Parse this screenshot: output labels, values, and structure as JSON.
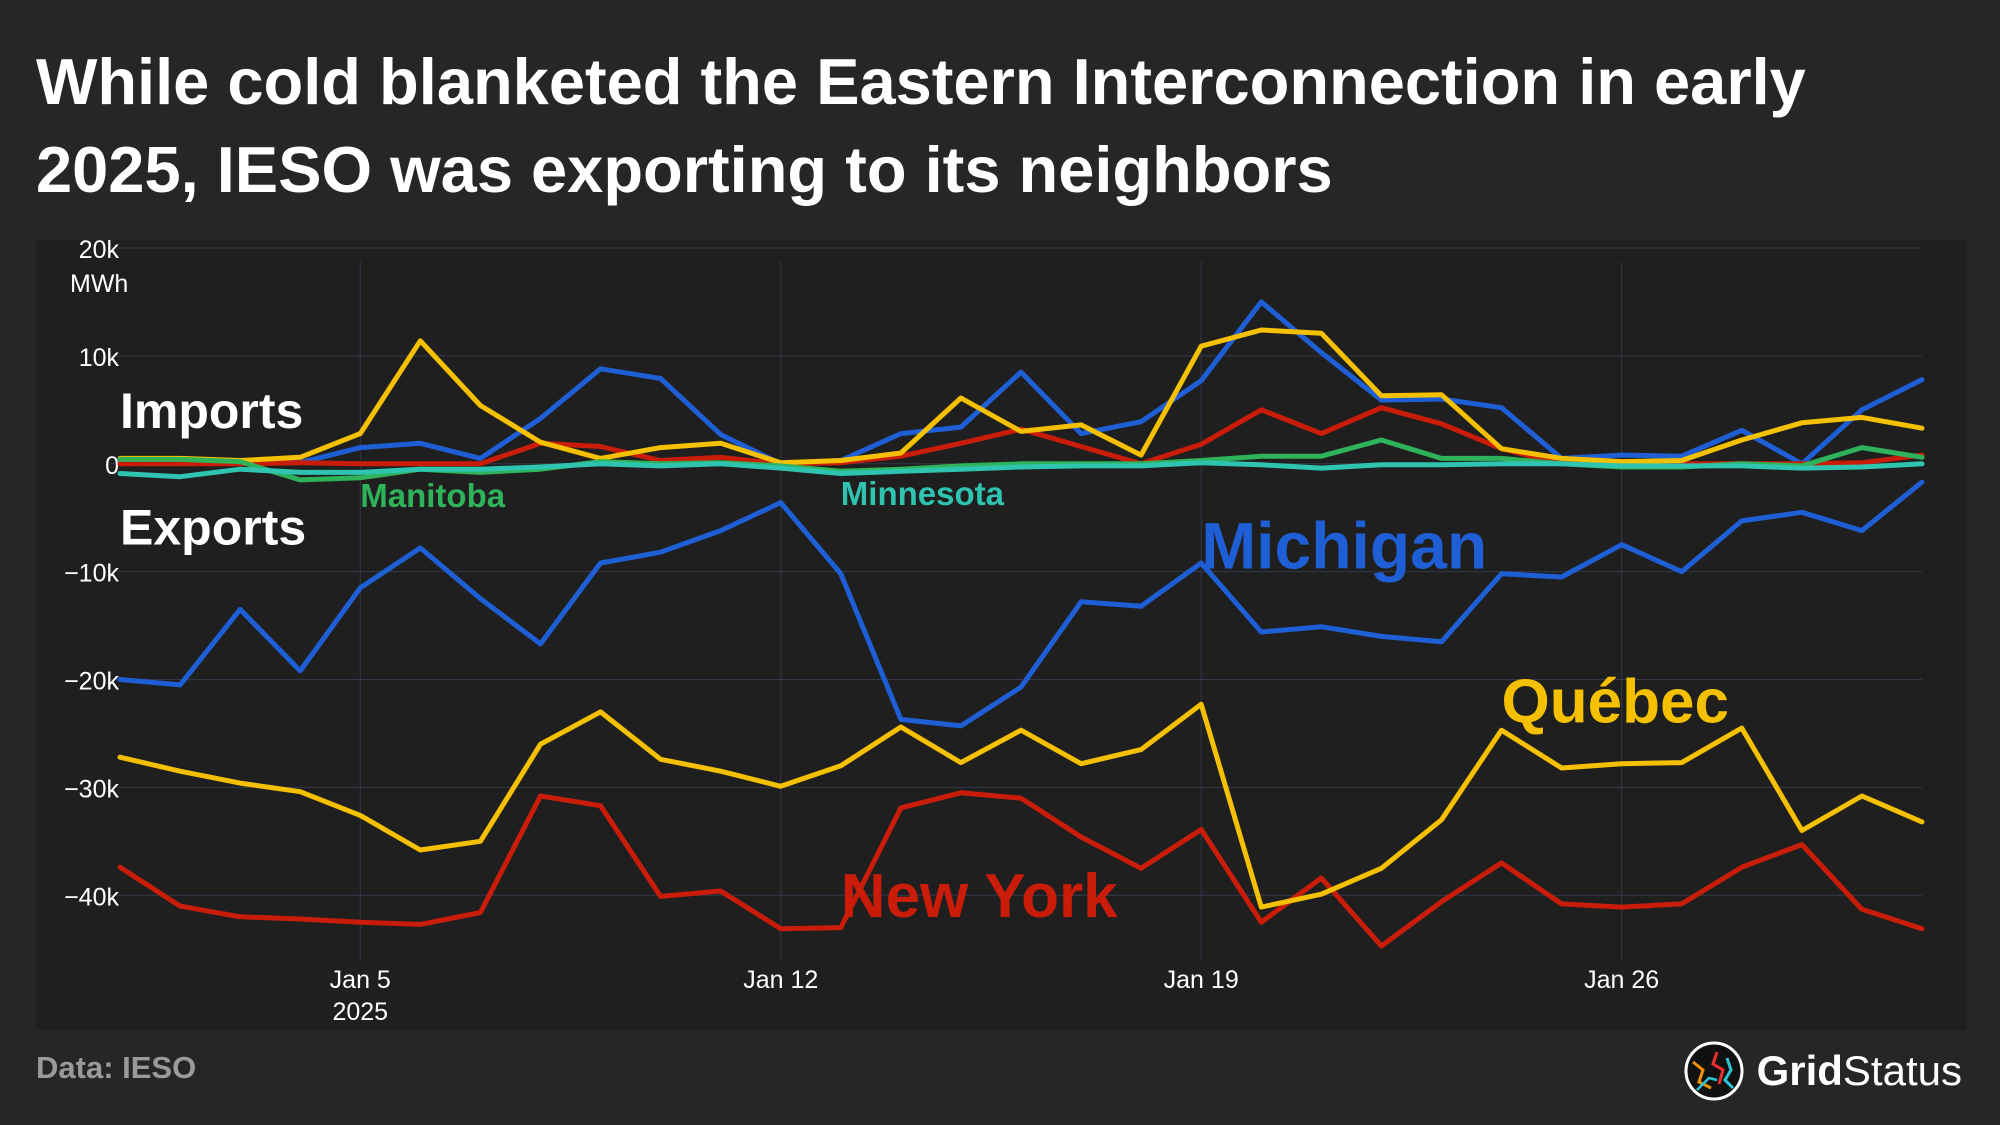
{
  "title": "While cold blanketed the Eastern Interconnection in early 2025, IESO was exporting to its neighbors",
  "source": "Data: IESO",
  "brand": {
    "name_bold": "Grid",
    "name_regular": "Status"
  },
  "colors": {
    "background": "#262626",
    "plot_background": "#1f1f1f",
    "grid": "#33384a",
    "text": "#ffffff",
    "michigan": "#1f5fd6",
    "quebec": "#f5c000",
    "new_york": "#c91d0a",
    "manitoba": "#2fb35a",
    "minnesota": "#2ec4b0"
  },
  "chart_data": {
    "type": "line",
    "x": [
      "2025-01-01",
      "2025-01-02",
      "2025-01-03",
      "2025-01-04",
      "2025-01-05",
      "2025-01-06",
      "2025-01-07",
      "2025-01-08",
      "2025-01-09",
      "2025-01-10",
      "2025-01-11",
      "2025-01-12",
      "2025-01-13",
      "2025-01-14",
      "2025-01-15",
      "2025-01-16",
      "2025-01-17",
      "2025-01-18",
      "2025-01-19",
      "2025-01-20",
      "2025-01-21",
      "2025-01-22",
      "2025-01-23",
      "2025-01-24",
      "2025-01-25",
      "2025-01-26",
      "2025-01-27",
      "2025-01-28",
      "2025-01-29",
      "2025-01-30",
      "2025-01-31"
    ],
    "x_ticks": [
      {
        "date": "2025-01-05",
        "label": "Jan 5",
        "sublabel": "2025"
      },
      {
        "date": "2025-01-12",
        "label": "Jan 12",
        "sublabel": ""
      },
      {
        "date": "2025-01-19",
        "label": "Jan 19",
        "sublabel": ""
      },
      {
        "date": "2025-01-26",
        "label": "Jan 26",
        "sublabel": ""
      }
    ],
    "y_ticks": [
      {
        "value": 20000,
        "label": "20k",
        "unit": "MWh"
      },
      {
        "value": 10000,
        "label": "10k",
        "unit": ""
      },
      {
        "value": 0,
        "label": "0",
        "unit": ""
      },
      {
        "value": -10000,
        "label": "−10k",
        "unit": ""
      },
      {
        "value": -20000,
        "label": "−20k",
        "unit": ""
      },
      {
        "value": -30000,
        "label": "−30k",
        "unit": ""
      },
      {
        "value": -40000,
        "label": "−40k",
        "unit": ""
      }
    ],
    "ylim": [
      -46000,
      20000
    ],
    "grid": true,
    "annotations": {
      "imports": "Imports",
      "exports": "Exports"
    },
    "series": [
      {
        "name": "Michigan",
        "key": "michigan",
        "direction": "exports",
        "values": [
          -20000,
          -20500,
          -13500,
          -19200,
          -11500,
          -7800,
          -12500,
          -16700,
          -9200,
          -8200,
          -6200,
          -3600,
          -10200,
          -23700,
          -24300,
          -20700,
          -12800,
          -13200,
          -9200,
          -15600,
          -15100,
          -16000,
          -16500,
          -10200,
          -10500,
          -7500,
          -10000,
          -5300,
          -4500,
          -6200,
          -1700
        ]
      },
      {
        "name": "Michigan",
        "key": "michigan",
        "direction": "imports",
        "values": [
          300,
          300,
          200,
          100,
          1500,
          1900,
          500,
          4200,
          8800,
          7900,
          2700,
          0,
          300,
          2800,
          3400,
          8500,
          2800,
          3900,
          7700,
          15000,
          10300,
          5900,
          6000,
          5200,
          500,
          800,
          700,
          3100,
          0,
          5000,
          7800
        ]
      },
      {
        "name": "Québec",
        "key": "quebec",
        "direction": "exports",
        "values": [
          -27200,
          -28500,
          -29600,
          -30400,
          -32600,
          -35800,
          -35000,
          -26000,
          -23000,
          -27400,
          -28500,
          -29900,
          -28000,
          -24400,
          -27700,
          -24700,
          -27800,
          -26500,
          -22300,
          -41100,
          -39900,
          -37500,
          -33000,
          -24700,
          -28200,
          -27800,
          -27700,
          -24500,
          -34000,
          -30800,
          -33200
        ]
      },
      {
        "name": "Québec",
        "key": "quebec",
        "direction": "imports",
        "values": [
          500,
          500,
          300,
          600,
          2800,
          11400,
          5400,
          2000,
          500,
          1500,
          1900,
          100,
          300,
          1000,
          6100,
          3000,
          3600,
          800,
          10900,
          12400,
          12100,
          6300,
          6400,
          1400,
          500,
          200,
          300,
          2200,
          3800,
          4300,
          3300
        ]
      },
      {
        "name": "New York",
        "key": "new_york",
        "direction": "exports",
        "values": [
          -37400,
          -41000,
          -42000,
          -42200,
          -42500,
          -42700,
          -41600,
          -30800,
          -31700,
          -40100,
          -39600,
          -43100,
          -43000,
          -31900,
          -30500,
          -31000,
          -34600,
          -37500,
          -33900,
          -42500,
          -38400,
          -44700,
          -40600,
          -37000,
          -40800,
          -41100,
          -40800,
          -37400,
          -35300,
          -41300,
          -43100
        ]
      },
      {
        "name": "New York",
        "key": "new_york",
        "direction": "imports",
        "values": [
          0,
          0,
          0,
          100,
          0,
          0,
          0,
          1900,
          1600,
          300,
          600,
          0,
          100,
          700,
          1900,
          3200,
          1600,
          0,
          1800,
          5000,
          2800,
          5200,
          3700,
          1400,
          0,
          0,
          0,
          0,
          0,
          100,
          800
        ]
      },
      {
        "name": "Manitoba",
        "key": "manitoba",
        "direction": "net",
        "values": [
          400,
          400,
          200,
          -1500,
          -1300,
          -500,
          -800,
          -500,
          200,
          0,
          100,
          -200,
          -700,
          -500,
          -200,
          0,
          0,
          0,
          300,
          700,
          700,
          2200,
          500,
          500,
          0,
          -300,
          -300,
          0,
          -200,
          1500,
          600
        ]
      },
      {
        "name": "Minnesota",
        "key": "minnesota",
        "direction": "net",
        "values": [
          -900,
          -1200,
          -500,
          -800,
          -800,
          -500,
          -500,
          -300,
          0,
          -200,
          0,
          -400,
          -900,
          -700,
          -500,
          -300,
          -200,
          -200,
          100,
          -100,
          -400,
          -100,
          -100,
          0,
          0,
          -200,
          -200,
          -200,
          -400,
          -300,
          0
        ]
      }
    ],
    "series_labels": [
      {
        "key": "michigan",
        "text": "Michigan"
      },
      {
        "key": "quebec",
        "text": "Québec"
      },
      {
        "key": "new_york",
        "text": "New York"
      },
      {
        "key": "manitoba",
        "text": "Manitoba"
      },
      {
        "key": "minnesota",
        "text": "Minnesota"
      }
    ]
  }
}
